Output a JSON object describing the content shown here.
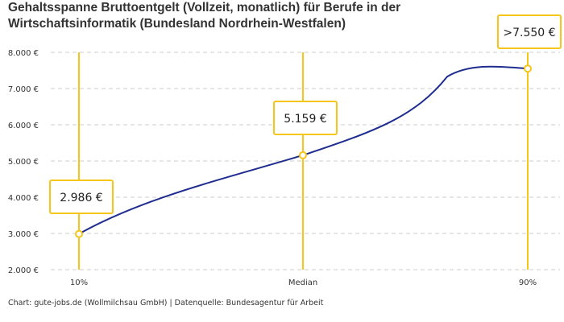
{
  "chart_data": {
    "type": "line",
    "title": "Gehaltsspanne Bruttoentgelt (Vollzeit, monatlich) für Berufe in der Wirtschaftsinformatik (Bundesland Nordrhein-Westfalen)",
    "categories": [
      "10%",
      "Median",
      "90%"
    ],
    "values": [
      2986,
      5159,
      7550
    ],
    "data_labels": [
      "2.986 €",
      "5.159 €",
      ">7.550 €"
    ],
    "ylim": [
      2000,
      8000
    ],
    "yticks": [
      2000,
      3000,
      4000,
      5000,
      6000,
      7000,
      8000
    ],
    "ytick_labels": [
      "2.000 €",
      "3.000 €",
      "4.000 €",
      "5.000 €",
      "6.000 €",
      "7.000 €",
      "8.000 €"
    ],
    "grid": true,
    "colors": {
      "line": "#1f2d8f",
      "marker": "#f5c518",
      "grid": "#cccccc"
    },
    "source": "Chart: gute-jobs.de (Wollmilchsau GmbH) | Datenquelle: Bundesagentur für Arbeit"
  }
}
